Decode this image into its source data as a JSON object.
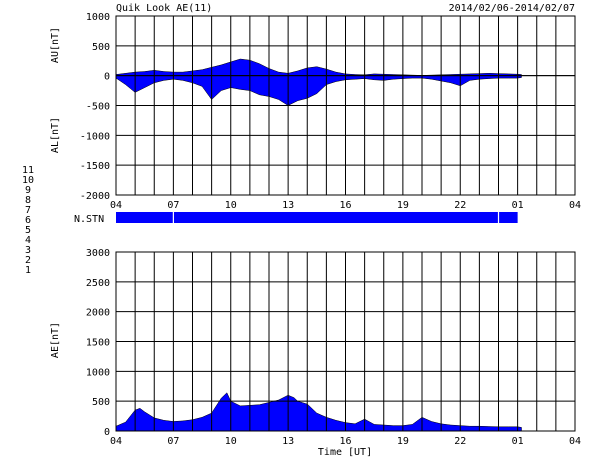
{
  "header": {
    "title": "Quik Look AE(11)",
    "date_range": "2014/02/06-2014/02/07"
  },
  "colors": {
    "fill": "#0000ff",
    "grid": "#000000",
    "background": "#ffffff"
  },
  "station_legend": [
    {
      "num": "11",
      "color": "#00d8d8"
    },
    {
      "num": "10",
      "color": "#ff00ff"
    },
    {
      "num": "9",
      "color": "#2020c0"
    },
    {
      "num": "8",
      "color": "#c8c800"
    },
    {
      "num": "7",
      "color": "#d0a000"
    },
    {
      "num": "6",
      "color": "#ff0000"
    },
    {
      "num": "5",
      "color": "#ffffff"
    },
    {
      "num": "4",
      "color": "#a0a0a0"
    },
    {
      "num": "3",
      "color": "#00a0a0"
    },
    {
      "num": "2",
      "color": "#c000c0"
    },
    {
      "num": "1",
      "color": "#0000c0"
    }
  ],
  "nstn": {
    "label": "N.STN",
    "segments": [
      [
        0,
        21.0
      ]
    ],
    "gaps": [
      3.0,
      20.0
    ]
  },
  "chart_data": [
    {
      "type": "area",
      "panel": "AU/AL",
      "ylabel_upper": "AU[nT]",
      "ylabel_lower": "AL[nT]",
      "ylim": [
        -2000,
        1000
      ],
      "yticks": [
        1000,
        500,
        0,
        -500,
        -1000,
        -1500,
        -2000
      ],
      "xlim": [
        0,
        24
      ],
      "xtick_labels": [
        "04",
        "07",
        "10",
        "13",
        "16",
        "19",
        "22",
        "01",
        "04"
      ],
      "grid": true,
      "au": {
        "x": [
          0,
          0.5,
          1,
          1.5,
          2,
          2.5,
          3,
          3.5,
          4,
          4.5,
          5,
          5.5,
          6,
          6.5,
          7,
          7.5,
          8,
          8.5,
          9,
          9.5,
          10,
          10.5,
          11,
          11.5,
          12,
          12.5,
          13,
          13.5,
          14,
          14.5,
          15,
          15.5,
          16,
          16.5,
          17,
          17.5,
          18,
          18.5,
          19,
          19.5,
          20,
          20.5,
          21,
          21.2
        ],
        "values": [
          20,
          40,
          60,
          70,
          90,
          70,
          60,
          60,
          80,
          100,
          140,
          180,
          230,
          280,
          260,
          200,
          120,
          60,
          40,
          80,
          130,
          150,
          110,
          60,
          30,
          20,
          15,
          30,
          25,
          20,
          15,
          10,
          5,
          10,
          15,
          20,
          25,
          30,
          35,
          40,
          35,
          30,
          25,
          20
        ]
      },
      "al": {
        "x": [
          0,
          0.5,
          1,
          1.5,
          2,
          2.5,
          3,
          3.5,
          4,
          4.5,
          5,
          5.5,
          6,
          6.5,
          7,
          7.5,
          8,
          8.5,
          9,
          9.5,
          10,
          10.5,
          11,
          11.5,
          12,
          12.5,
          13,
          13.5,
          14,
          14.5,
          15,
          15.5,
          16,
          16.5,
          17,
          17.5,
          18,
          18.5,
          19,
          19.5,
          20,
          20.5,
          21,
          21.2
        ],
        "values": [
          -40,
          -150,
          -280,
          -200,
          -120,
          -80,
          -60,
          -80,
          -120,
          -180,
          -400,
          -250,
          -200,
          -230,
          -250,
          -320,
          -350,
          -400,
          -500,
          -420,
          -380,
          -300,
          -150,
          -100,
          -70,
          -60,
          -50,
          -70,
          -80,
          -60,
          -50,
          -40,
          -40,
          -60,
          -90,
          -120,
          -170,
          -80,
          -60,
          -50,
          -40,
          -40,
          -40,
          -30
        ]
      }
    },
    {
      "type": "area",
      "panel": "AE",
      "ylabel": "AE[nT]",
      "xlabel": "Time [UT]",
      "ylim": [
        0,
        3000
      ],
      "yticks": [
        3000,
        2500,
        2000,
        1500,
        1000,
        500,
        0
      ],
      "xlim": [
        0,
        24
      ],
      "xtick_labels": [
        "04",
        "07",
        "10",
        "13",
        "16",
        "19",
        "22",
        "01",
        "04"
      ],
      "grid": true,
      "series": [
        {
          "x": [
            0,
            0.5,
            1,
            1.25,
            1.5,
            2,
            2.5,
            3,
            3.5,
            4,
            4.5,
            5,
            5.5,
            5.8,
            6,
            6.5,
            7,
            7.5,
            8,
            8.5,
            9,
            9.3,
            9.5,
            10,
            10.5,
            11,
            11.5,
            12,
            12.5,
            13,
            13.5,
            14,
            14.5,
            15,
            15.5,
            16,
            16.5,
            17,
            17.5,
            18,
            18.5,
            19,
            19.5,
            20,
            20.5,
            21,
            21.2
          ],
          "values": [
            80,
            150,
            350,
            380,
            320,
            220,
            180,
            160,
            170,
            190,
            230,
            300,
            550,
            640,
            500,
            420,
            430,
            440,
            480,
            520,
            600,
            560,
            500,
            450,
            300,
            230,
            180,
            140,
            120,
            200,
            110,
            100,
            90,
            90,
            110,
            230,
            160,
            120,
            100,
            90,
            80,
            80,
            75,
            70,
            70,
            70,
            60
          ]
        }
      ]
    }
  ]
}
